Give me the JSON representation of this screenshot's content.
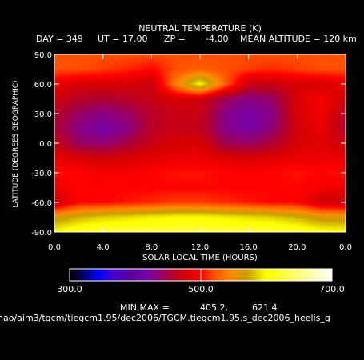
{
  "chart_data": {
    "type": "heatmap",
    "title": "NEUTRAL TEMPERATURE (K)",
    "subtitle": {
      "day": "DAY = 349",
      "ut": "UT = 17.00",
      "zp": "ZP =",
      "zp_value": "-4.00",
      "mean_alt": "MEAN ALTITUDE = 120 km"
    },
    "xlabel": "SOLAR LOCAL TIME (HOURS)",
    "ylabel": "LATITUDE (DEGREES GEOGRAPHIC)",
    "x_ticks": [
      "0.0",
      "4.0",
      "8.0",
      "12.0",
      "16.0",
      "20.0",
      "0.0"
    ],
    "y_ticks": [
      "90.0",
      "60.0",
      "30.0",
      "0.0",
      "-30.0",
      "-60.0",
      "-90.0"
    ],
    "xlim": [
      0,
      24
    ],
    "ylim": [
      -90,
      90
    ],
    "x": [
      0,
      2,
      4,
      6,
      8,
      10,
      12,
      14,
      16,
      18,
      20,
      22,
      24
    ],
    "y": [
      90,
      75,
      60,
      45,
      30,
      15,
      0,
      -15,
      -30,
      -45,
      -60,
      -75,
      -90
    ],
    "z": [
      [
        520,
        520,
        520,
        520,
        520,
        520,
        520,
        520,
        520,
        520,
        520,
        520,
        520
      ],
      [
        520,
        520,
        515,
        510,
        500,
        520,
        525,
        520,
        515,
        510,
        515,
        520,
        520
      ],
      [
        490,
        480,
        480,
        480,
        470,
        540,
        600,
        530,
        470,
        470,
        480,
        480,
        490
      ],
      [
        475,
        460,
        455,
        460,
        470,
        480,
        475,
        445,
        430,
        440,
        480,
        495,
        475
      ],
      [
        460,
        440,
        430,
        440,
        460,
        470,
        470,
        430,
        420,
        430,
        480,
        495,
        460
      ],
      [
        455,
        430,
        420,
        430,
        460,
        470,
        465,
        430,
        420,
        435,
        475,
        490,
        455
      ],
      [
        470,
        440,
        435,
        450,
        470,
        480,
        480,
        445,
        440,
        455,
        480,
        485,
        470
      ],
      [
        490,
        480,
        475,
        480,
        485,
        490,
        490,
        485,
        480,
        485,
        490,
        490,
        490
      ],
      [
        505,
        500,
        495,
        495,
        500,
        505,
        505,
        500,
        500,
        500,
        505,
        500,
        505
      ],
      [
        490,
        500,
        500,
        500,
        500,
        500,
        500,
        500,
        500,
        500,
        500,
        495,
        490
      ],
      [
        470,
        500,
        500,
        505,
        510,
        515,
        515,
        510,
        505,
        500,
        500,
        475,
        470
      ],
      [
        560,
        575,
        585,
        590,
        595,
        600,
        600,
        595,
        590,
        585,
        575,
        560,
        560
      ],
      [
        600,
        615,
        620,
        620,
        620,
        620,
        620,
        620,
        620,
        620,
        615,
        605,
        600
      ]
    ],
    "colorbar": {
      "min": 300.0,
      "max": 700.0,
      "labels": [
        "300.0",
        "500.0",
        "700.0"
      ],
      "stops": [
        [
          300,
          "#000000"
        ],
        [
          320,
          "#000060"
        ],
        [
          345,
          "#0000ff"
        ],
        [
          365,
          "#4400cc"
        ],
        [
          395,
          "#5a0098"
        ],
        [
          420,
          "#7800a8"
        ],
        [
          455,
          "#b00030"
        ],
        [
          480,
          "#d80000"
        ],
        [
          500,
          "#ff0000"
        ],
        [
          520,
          "#ff5000"
        ],
        [
          545,
          "#ff8c00"
        ],
        [
          570,
          "#c8a000"
        ],
        [
          600,
          "#ffff00"
        ],
        [
          650,
          "#ffff80"
        ],
        [
          700,
          "#ffffff"
        ]
      ]
    },
    "minmax_label": "MIN,MAX =",
    "min_value": "405.2,",
    "max_value": "621.4"
  },
  "footer_path": "nao/aim3/tgcm/tiegcm1.95/dec2006/TGCM.tiegcm1.95.s_dec2006_heelis_g"
}
